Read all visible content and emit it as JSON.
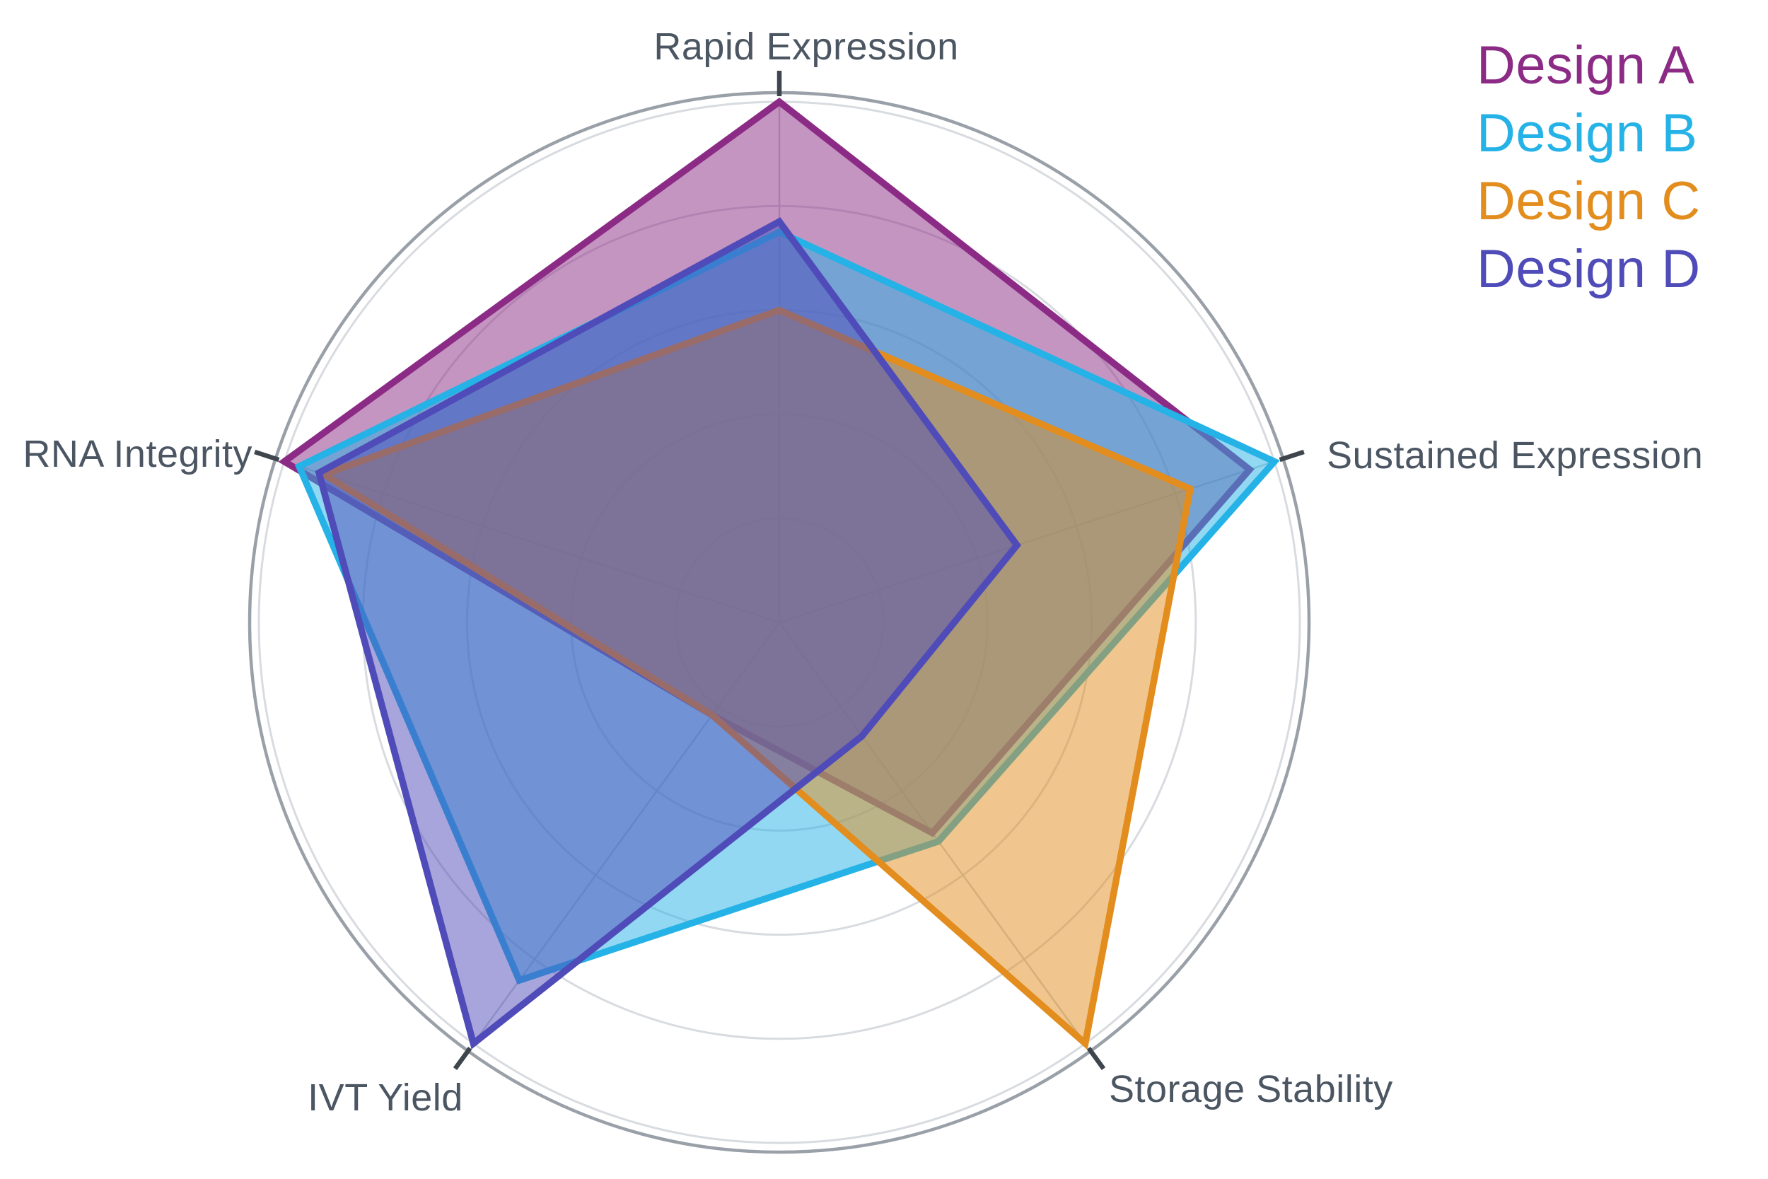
{
  "chart_data": {
    "type": "radar",
    "categories": [
      "Rapid Expression",
      "Sustained Expression",
      "Storage Stability",
      "IVT Yield",
      "RNA Integrity"
    ],
    "series": [
      {
        "name": "Design A",
        "color": "#8C2B86",
        "values": [
          10,
          9.5,
          5.0,
          2.2,
          10
        ]
      },
      {
        "name": "Design B",
        "color": "#25B2E6",
        "values": [
          7.5,
          10,
          5.2,
          8.5,
          9.7
        ]
      },
      {
        "name": "Design C",
        "color": "#E28D1D",
        "values": [
          6.0,
          8.3,
          10,
          2.2,
          9.2
        ]
      },
      {
        "name": "Design D",
        "color": "#4F4BB8",
        "values": [
          7.7,
          4.8,
          2.7,
          10,
          9.3
        ]
      }
    ],
    "scale": {
      "min": 0,
      "max": 10,
      "rings": 5
    },
    "fill_opacity": 0.5,
    "grid": {
      "ring_color": "#D8DBDF",
      "outer_circle_color": "#99A0A8",
      "spoke_color": "#CBCFD4",
      "tick_color": "#3E454D",
      "label_color": "#4B5662",
      "background": "#FFFFFF"
    },
    "legend_position": "top-right",
    "title": "",
    "xlabel": "",
    "ylabel": ""
  }
}
